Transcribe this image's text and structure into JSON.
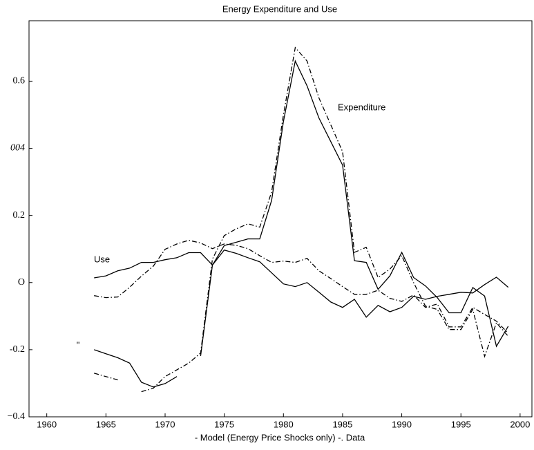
{
  "chart_data": {
    "type": "line",
    "title": "Energy Expenditure and Use",
    "xlabel": "-  Model (Energy Price Shocks only)    -. Data",
    "annotations": [
      "Expenditure",
      "Use",
      "\""
    ],
    "x": [
      1964,
      1965,
      1966,
      1967,
      1968,
      1969,
      1970,
      1971,
      1972,
      1973,
      1974,
      1975,
      1976,
      1977,
      1978,
      1979,
      1980,
      1981,
      1982,
      1983,
      1984,
      1985,
      1986,
      1987,
      1988,
      1989,
      1990,
      1991,
      1992,
      1993,
      1994,
      1995,
      1996,
      1997,
      1998,
      1999
    ],
    "series": [
      {
        "color": "#000000",
        "style": "solid",
        "values": [
          -0.2,
          -0.212,
          -0.224,
          -0.24,
          -0.297,
          -0.311,
          -0.301,
          -0.28,
          null,
          -0.219,
          0.052,
          0.11,
          0.12,
          0.13,
          0.13,
          0.245,
          0.48,
          0.66,
          0.586,
          0.49,
          0.42,
          0.35,
          0.065,
          0.06,
          -0.02,
          0.02,
          0.09,
          0.015,
          -0.01,
          -0.045,
          -0.09,
          -0.09,
          -0.015,
          -0.04,
          -0.19,
          -0.13
        ]
      },
      {
        "color": "#000000",
        "style": "dash-dot",
        "values": [
          -0.27,
          -0.28,
          -0.29,
          null,
          -0.325,
          -0.315,
          -0.28,
          -0.26,
          -0.24,
          -0.21,
          0.07,
          0.14,
          0.16,
          0.175,
          0.165,
          0.27,
          0.5,
          0.7,
          0.66,
          0.55,
          0.47,
          0.39,
          0.09,
          0.105,
          0.015,
          0.04,
          0.08,
          0.0,
          -0.07,
          -0.08,
          -0.14,
          -0.14,
          -0.08,
          -0.22,
          -0.12,
          -0.16
        ]
      },
      {
        "color": "#000000",
        "style": "solid",
        "values": [
          0.014,
          0.02,
          0.035,
          0.043,
          0.06,
          0.06,
          0.068,
          0.074,
          0.089,
          0.089,
          0.052,
          0.097,
          0.087,
          0.074,
          0.062,
          0.029,
          -0.004,
          -0.012,
          0,
          -0.029,
          -0.058,
          -0.074,
          -0.05,
          -0.103,
          -0.068,
          -0.087,
          -0.074,
          -0.041,
          -0.05,
          -0.041,
          -0.035,
          -0.029,
          -0.031,
          -0.006,
          0.016,
          -0.014
        ]
      },
      {
        "color": "#000000",
        "style": "dash-dot",
        "values": [
          -0.039,
          -0.045,
          -0.043,
          -0.014,
          0.019,
          0.049,
          0.099,
          0.115,
          0.126,
          0.118,
          0.101,
          0.115,
          0.111,
          0.101,
          0.08,
          0.06,
          0.064,
          0.06,
          0.072,
          0.035,
          0.012,
          -0.012,
          -0.035,
          -0.035,
          -0.023,
          -0.047,
          -0.056,
          -0.037,
          -0.074,
          -0.064,
          -0.132,
          -0.132,
          -0.074,
          -0.095,
          -0.115,
          -0.151
        ]
      }
    ],
    "xlim": [
      1958.5,
      2001
    ],
    "xticks": [
      1960,
      1965,
      1970,
      1975,
      1980,
      1985,
      1990,
      1995,
      2000
    ],
    "ylim": [
      -0.4,
      0.78
    ],
    "yticks": [
      {
        "value": -0.4,
        "label": "−0.4"
      },
      -0.2,
      {
        "value": 0,
        "label": "O"
      },
      0.2,
      {
        "value": 0.4,
        "label": "004"
      },
      0.6
    ]
  }
}
